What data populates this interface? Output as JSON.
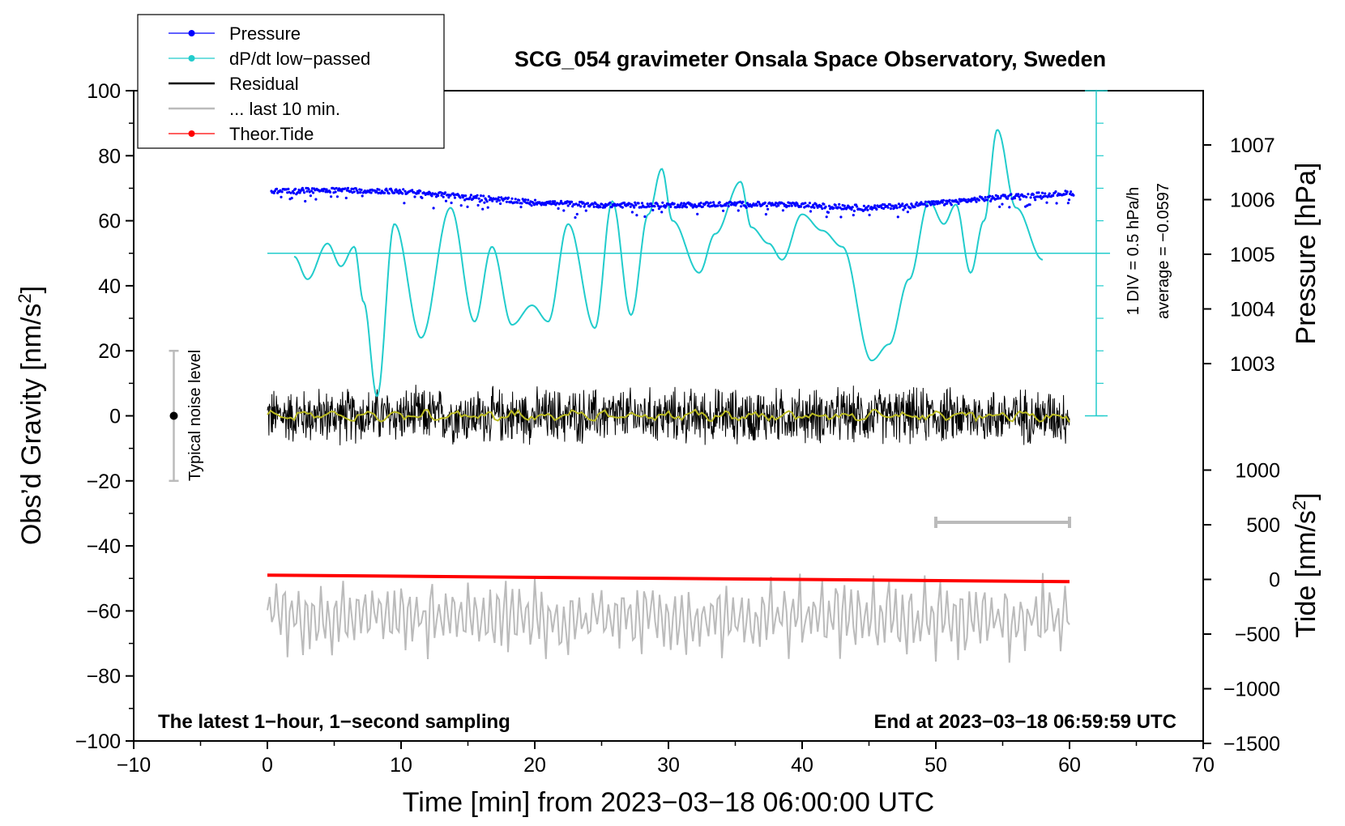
{
  "chart_data": {
    "type": "line",
    "title": "SCG_054 gravimeter Onsala Space Observatory, Sweden",
    "xlabel": "Time [min] from 2023−03−18 06:00:00 UTC",
    "ylabel_left": "Obs’d Gravity [nm/s",
    "ylabel_left_sup": "2",
    "ylabel_left_end": "]",
    "ylabel_right_pressure": "Pressure [hPa]",
    "ylabel_right_tide": "Tide [nm/s",
    "ylabel_right_tide_sup": "2",
    "ylabel_right_tide_end": "]",
    "xlim": [
      -10,
      70
    ],
    "ylim": [
      -100,
      100
    ],
    "x_ticks": [
      "−10",
      "0",
      "10",
      "20",
      "30",
      "40",
      "50",
      "60",
      "70"
    ],
    "y_ticks": [
      "100",
      "80",
      "60",
      "40",
      "20",
      "0",
      "−20",
      "−40",
      "−60",
      "−80",
      "−100"
    ],
    "pressure_axis": {
      "ticks": [
        "1007",
        "1006",
        "1005",
        "1004",
        "1003"
      ],
      "values": [
        1007,
        1006,
        1005,
        1004,
        1003
      ]
    },
    "tide_axis": {
      "ticks": [
        "1000",
        "500",
        "0",
        "−500",
        "−1000",
        "−1500"
      ],
      "values": [
        1000,
        500,
        0,
        -500,
        -1000,
        -1500
      ]
    },
    "legend": [
      {
        "label": "Pressure",
        "color": "#0000ff",
        "marker": true
      },
      {
        "label": "dP/dt low−passed",
        "color": "#22cccc",
        "marker": true
      },
      {
        "label": "Residual",
        "color": "#000000",
        "marker": false
      },
      {
        "label": "... last 10 min.",
        "color": "#bbbbbb",
        "marker": false
      },
      {
        "label": "Theor.Tide",
        "color": "#ff0000",
        "marker": true
      }
    ],
    "series": [
      {
        "name": "Pressure",
        "unit": "hPa",
        "color": "#0000ff",
        "x": [
          0,
          5,
          10,
          15,
          20,
          25,
          30,
          35,
          40,
          45,
          50,
          55,
          60
        ],
        "values": [
          1006.15,
          1006.18,
          1006.15,
          1006.05,
          1005.95,
          1005.9,
          1005.9,
          1005.92,
          1005.9,
          1005.85,
          1005.93,
          1006.05,
          1006.12
        ]
      },
      {
        "name": "dP/dt low−passed",
        "unit": "hPa/h",
        "color": "#22cccc",
        "x": [
          2,
          3,
          4.5,
          5.5,
          6.5,
          7.2,
          8.2,
          9.5,
          11.5,
          13.7,
          15.5,
          16.8,
          18.3,
          19.8,
          21,
          22.5,
          24.5,
          25.8,
          27.2,
          28.5,
          29.5,
          30.3,
          32.3,
          33.5,
          35.4,
          36.2,
          37.5,
          38.5,
          40,
          41.5,
          43,
          45.2,
          46.5,
          48,
          49.5,
          50.6,
          51.5,
          52.6,
          53.6,
          54.6,
          56,
          58
        ],
        "values": [
          49,
          42,
          53,
          46,
          52,
          35,
          6,
          59,
          24,
          64,
          29,
          52,
          28,
          34,
          29,
          59,
          27,
          66,
          31,
          62,
          76,
          60,
          44,
          56,
          72,
          58,
          53,
          48,
          62,
          57,
          52,
          17,
          22,
          42,
          66,
          59,
          65,
          44,
          60,
          88,
          64,
          48
        ]
      },
      {
        "name": "Residual",
        "unit": "nm/s2",
        "color": "#000000",
        "x_range": [
          0,
          60
        ],
        "amplitude": 10
      },
      {
        "name": "Residual smoothed",
        "unit": "nm/s2",
        "color": "#bbbb22",
        "x_range": [
          0,
          60
        ],
        "amplitude": 2
      },
      {
        "name": "Theor.Tide",
        "unit": "nm/s2",
        "color": "#ff0000",
        "x": [
          0,
          60
        ],
        "values": [
          -49,
          -51
        ]
      },
      {
        "name": "... last 10 min.",
        "unit": "nm/s2",
        "color": "#bbbbbb",
        "x_range": [
          0,
          60
        ],
        "center": -62,
        "amplitude": 12
      }
    ],
    "dpdt_scale": {
      "label": "1 DIV = 0.5 hPa/h",
      "average_label": "average = −0.0597",
      "zero_level": 50
    },
    "noise_bar": {
      "label": "Typical noise level",
      "x": -7,
      "center": 0,
      "half_range": 20
    },
    "scale_bar_gray": {
      "x_start": 50,
      "x_end": 60
    },
    "annotation_left": "The latest 1−hour, 1−second sampling",
    "annotation_right": "End at 2023−03−18 06:59:59 UTC"
  }
}
